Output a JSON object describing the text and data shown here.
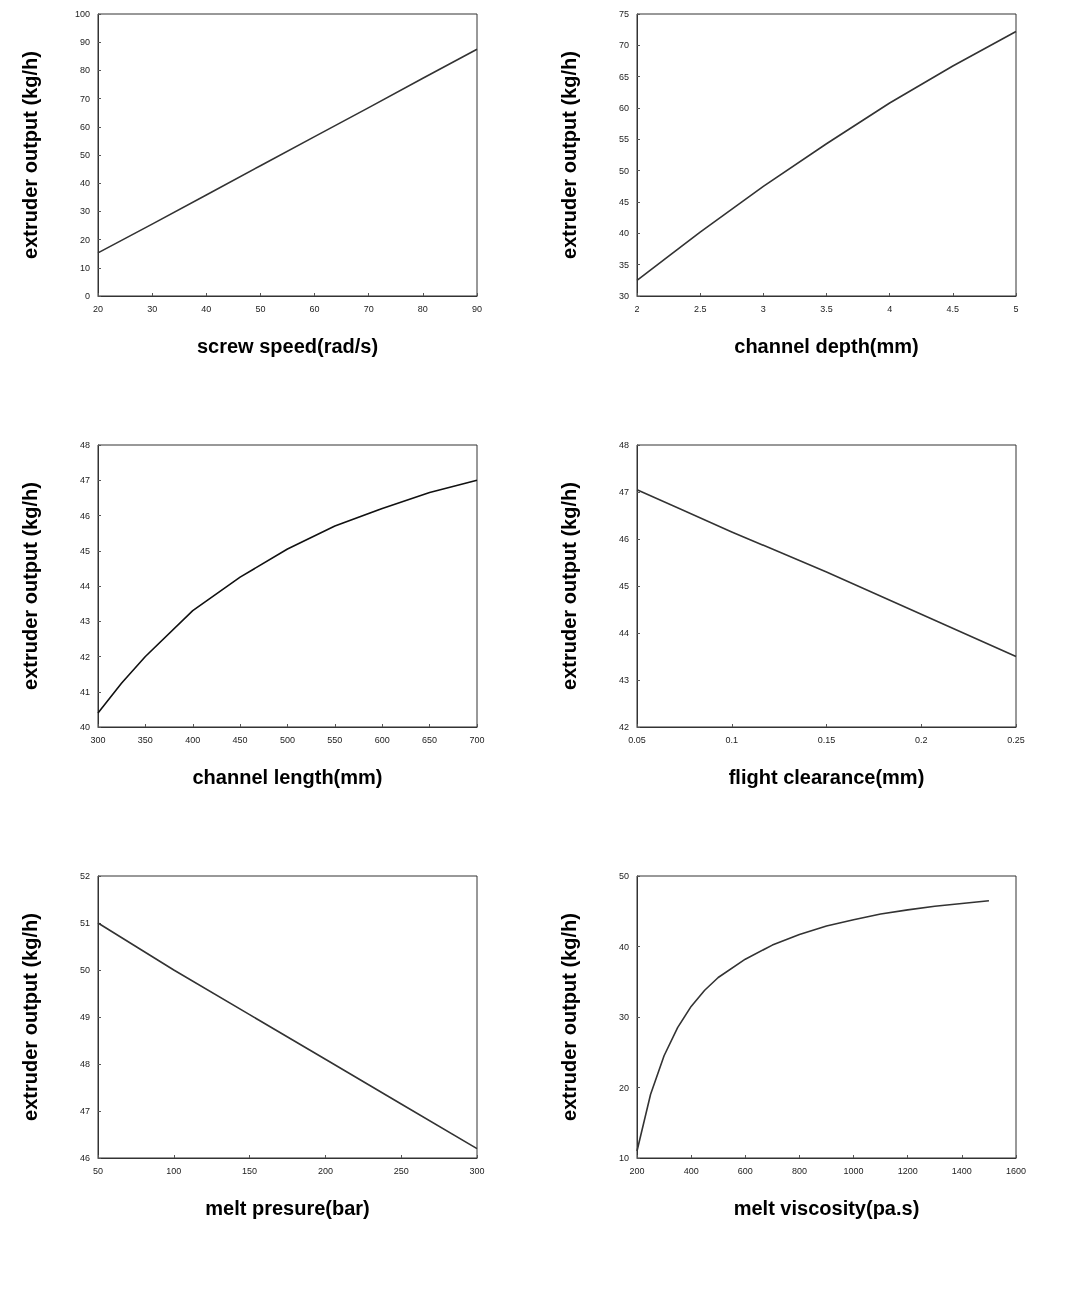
{
  "chart_data": [
    {
      "type": "line",
      "xlabel": "screw speed(rad/s)",
      "ylabel": "extruder output (kg/h)",
      "color": "#333333",
      "x": [
        20,
        30,
        40,
        50,
        60,
        70,
        80,
        90
      ],
      "values": [
        15.3,
        25.5,
        35.8,
        46.2,
        56.5,
        66.8,
        77.2,
        87.5
      ],
      "xlim": [
        20,
        90
      ],
      "ylim": [
        0,
        100
      ],
      "xticks": [
        20,
        30,
        40,
        50,
        60,
        70,
        80,
        90
      ],
      "yticks": [
        0,
        10,
        20,
        30,
        40,
        50,
        60,
        70,
        80,
        90,
        100
      ]
    },
    {
      "type": "line",
      "xlabel": "channel depth(mm)",
      "ylabel": "extruder output (kg/h)",
      "color": "#333333",
      "x": [
        2,
        2.5,
        3,
        3.5,
        4,
        4.5,
        5
      ],
      "values": [
        32.5,
        40.2,
        47.5,
        54.3,
        60.8,
        66.7,
        72.2
      ],
      "xlim": [
        2,
        5
      ],
      "ylim": [
        30,
        75
      ],
      "xticks": [
        2,
        2.5,
        3,
        3.5,
        4,
        4.5,
        5
      ],
      "yticks": [
        30,
        35,
        40,
        45,
        50,
        55,
        60,
        65,
        70,
        75
      ]
    },
    {
      "type": "line",
      "xlabel": "channel length(mm)",
      "ylabel": "extruder output (kg/h)",
      "color": "#111111",
      "x": [
        300,
        325,
        350,
        400,
        450,
        500,
        550,
        600,
        650,
        700
      ],
      "values": [
        40.4,
        41.25,
        42.0,
        43.3,
        44.25,
        45.05,
        45.7,
        46.2,
        46.65,
        47.0
      ],
      "xlim": [
        300,
        700
      ],
      "ylim": [
        40,
        48
      ],
      "xticks": [
        300,
        350,
        400,
        450,
        500,
        550,
        600,
        650,
        700
      ],
      "yticks": [
        40,
        41,
        42,
        43,
        44,
        45,
        46,
        47,
        48
      ]
    },
    {
      "type": "line",
      "xlabel": "flight clearance(mm)",
      "ylabel": "extruder output (kg/h)",
      "color": "#333333",
      "x": [
        0.05,
        0.1,
        0.15,
        0.2,
        0.25
      ],
      "values": [
        47.05,
        46.15,
        45.3,
        44.4,
        43.5
      ],
      "xlim": [
        0.05,
        0.25
      ],
      "ylim": [
        42,
        48
      ],
      "xticks": [
        0.05,
        0.1,
        0.15,
        0.2,
        0.25
      ],
      "yticks": [
        42,
        43,
        44,
        45,
        46,
        47,
        48
      ]
    },
    {
      "type": "line",
      "xlabel": "melt presure(bar)",
      "ylabel": "extruder output (kg/h)",
      "color": "#333333",
      "x": [
        50,
        100,
        150,
        200,
        250,
        300
      ],
      "values": [
        51.0,
        50.0,
        49.05,
        48.1,
        47.15,
        46.2
      ],
      "xlim": [
        50,
        300
      ],
      "ylim": [
        46,
        52
      ],
      "xticks": [
        50,
        100,
        150,
        200,
        250,
        300
      ],
      "yticks": [
        46,
        47,
        48,
        49,
        50,
        51,
        52
      ]
    },
    {
      "type": "line",
      "xlabel": "melt viscosity(pa.s)",
      "ylabel": "extruder output (kg/h)",
      "color": "#333333",
      "x": [
        200,
        225,
        250,
        300,
        350,
        400,
        450,
        500,
        600,
        700,
        800,
        900,
        1000,
        1100,
        1200,
        1300,
        1400,
        1500
      ],
      "values": [
        11,
        15,
        19,
        24.5,
        28.5,
        31.5,
        33.8,
        35.6,
        38.2,
        40.2,
        41.7,
        42.9,
        43.8,
        44.6,
        45.2,
        45.7,
        46.1,
        46.5
      ],
      "xlim": [
        200,
        1600
      ],
      "ylim": [
        10,
        50
      ],
      "xticks": [
        200,
        400,
        600,
        800,
        1000,
        1200,
        1400,
        1600
      ],
      "yticks": [
        10,
        20,
        30,
        40,
        50
      ]
    }
  ]
}
